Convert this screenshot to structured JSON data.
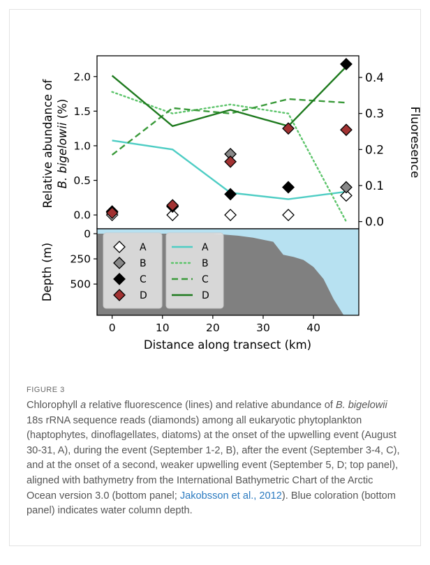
{
  "figure": {
    "colors": {
      "A": "#4ecdc4",
      "B": "#5cc46a",
      "C": "#3a9a3a",
      "D": "#1e7a1e",
      "water": "#b7e1f1",
      "land": "#808080"
    },
    "legend_markers": [
      {
        "label": "A",
        "fill": "#ffffff"
      },
      {
        "label": "B",
        "fill": "#888888"
      },
      {
        "label": "C",
        "fill": "#000000"
      },
      {
        "label": "D",
        "fill": "#a23232"
      }
    ],
    "legend_lines": [
      {
        "label": "A",
        "style": "solid",
        "color": "#4ecdc4"
      },
      {
        "label": "B",
        "style": "dotted",
        "color": "#5cc46a"
      },
      {
        "label": "C",
        "style": "dashed",
        "color": "#3a9a3a"
      },
      {
        "label": "D",
        "style": "solid",
        "color": "#1e7a1e"
      }
    ]
  },
  "chart_data": [
    {
      "type": "line",
      "title": "",
      "xlabel": "Distance along transect (km)",
      "ylabel": "Relative abundance of B. bigelowii (%)",
      "ylabel_line1": "Relative abundance of",
      "ylabel_line2": "B. bigelowii (%)",
      "y2label": "Fluoresence",
      "xlim": [
        -3,
        49
      ],
      "ylim": [
        -0.2,
        2.3
      ],
      "y2lim": [
        -0.02,
        0.46
      ],
      "x_ticks": [
        "0",
        "10",
        "20",
        "30",
        "40"
      ],
      "y_ticks": [
        "0.0",
        "0.5",
        "1.0",
        "1.5",
        "2.0"
      ],
      "y2_ticks": [
        "0.0",
        "0.1",
        "0.2",
        "0.3",
        "0.4"
      ],
      "fluorescence_series": [
        {
          "name": "A",
          "x": [
            0,
            12,
            23.5,
            35,
            46.5
          ],
          "y": [
            0.225,
            0.2,
            0.08,
            0.062,
            0.083
          ]
        },
        {
          "name": "B",
          "x": [
            0,
            12,
            23.5,
            35,
            46.5
          ],
          "y": [
            0.36,
            0.3,
            0.325,
            0.3,
            0.0
          ]
        },
        {
          "name": "C",
          "x": [
            0,
            12,
            23.5,
            35,
            46.5
          ],
          "y": [
            0.185,
            0.315,
            0.3,
            0.34,
            0.33
          ]
        },
        {
          "name": "D",
          "x": [
            0,
            12,
            23.5,
            35,
            46.5
          ],
          "y": [
            0.405,
            0.265,
            0.31,
            0.265,
            0.43
          ]
        }
      ],
      "abundance_series": [
        {
          "name": "A",
          "x": [
            0,
            12,
            23.5,
            35,
            46.5
          ],
          "y": [
            0.0,
            0.0,
            0.0,
            0.0,
            0.28
          ]
        },
        {
          "name": "B",
          "x": [
            0,
            12,
            23.5,
            35,
            46.5
          ],
          "y": [
            0.05,
            0.13,
            0.88,
            0.4,
            0.4
          ]
        },
        {
          "name": "C",
          "x": [
            0,
            12,
            23.5,
            35,
            46.5
          ],
          "y": [
            0.05,
            0.12,
            0.3,
            0.4,
            2.18
          ]
        },
        {
          "name": "D",
          "x": [
            0,
            12,
            23.5,
            35,
            46.5
          ],
          "y": [
            0.03,
            0.14,
            0.77,
            1.25,
            1.23
          ]
        }
      ]
    },
    {
      "type": "area",
      "ylabel": "Depth (m)",
      "xlabel": "Distance along transect (km)",
      "y_ticks": [
        "0",
        "250",
        "500"
      ],
      "ylim": [
        0,
        1000
      ],
      "bathymetry": {
        "x": [
          -3,
          20,
          25,
          28,
          32,
          34,
          36,
          38,
          40,
          42,
          44,
          46,
          49
        ],
        "depth": [
          0,
          0,
          20,
          40,
          80,
          210,
          230,
          260,
          330,
          450,
          650,
          1000,
          1000
        ]
      }
    }
  ],
  "caption": {
    "label": "FIGURE 3",
    "text_before_a": "Chlorophyll ",
    "italic_a": "a",
    "text_mid1": " relative fluorescence (lines) and relative abundance of ",
    "italic_species": "B. bigelowii",
    "text_mid2": " 18s rRNA sequence reads (diamonds) among all eukaryotic phytoplankton (haptophytes, dinoflagellates, diatoms) at the onset of the upwelling event (August 30-31, A), during the event (September 1-2, B), after the event (September 3-4, C), and at the onset of a second, weaker upwelling event (September 5, D; top panel), aligned with bathymetry from the International Bathymetric Chart of the Arctic Ocean version 3.0 (bottom panel; ",
    "link_text": "Jakobsson et al., 2012",
    "text_end": "). Blue coloration (bottom panel) indicates water column depth."
  }
}
